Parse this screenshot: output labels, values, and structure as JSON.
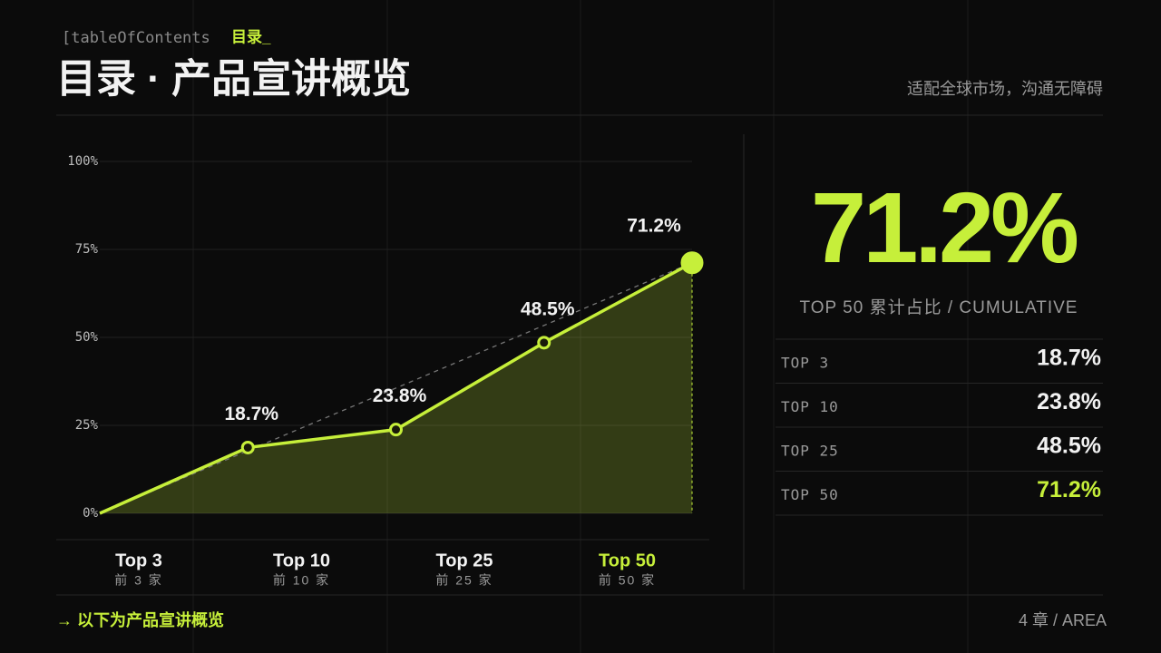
{
  "header": {
    "tag": "[tableOfContents",
    "tag_accent": "目录_",
    "title": "目录 · 产品宣讲概览",
    "subtitle": "适配全球市场，沟通无障碍"
  },
  "chart_data": {
    "type": "line",
    "categories": [
      null,
      "Top 3",
      "Top 10",
      "Top 25",
      "Top 50"
    ],
    "sublabels": [
      null,
      "前 3 家",
      "前 10 家",
      "前 25 家",
      "前 50 家"
    ],
    "values": [
      0,
      18.7,
      23.8,
      48.5,
      71.2
    ],
    "value_labels": [
      null,
      "18.7%",
      "23.8%",
      "48.5%",
      "71.2%"
    ],
    "color": "#c6ef3a",
    "ylim": [
      0,
      100
    ],
    "yticks": [
      {
        "value": 0,
        "label": "0%"
      },
      {
        "value": 25,
        "label": "25%"
      },
      {
        "value": 50,
        "label": "50%"
      },
      {
        "value": 75,
        "label": "75%"
      },
      {
        "value": 100,
        "label": "100%"
      }
    ],
    "grid": true
  },
  "summary": {
    "big": "71.2%",
    "caption": "TOP 50  累计占比  / CUMULATIVE",
    "rows": [
      [
        "TOP 3",
        "18.7%"
      ],
      [
        "TOP 10",
        "23.8%"
      ],
      [
        "TOP 25",
        "48.5%"
      ],
      [
        "TOP 50",
        "71.2%"
      ]
    ]
  },
  "footer": {
    "left": "→  以下为产品宣讲概览",
    "right": "4 章  / AREA"
  }
}
